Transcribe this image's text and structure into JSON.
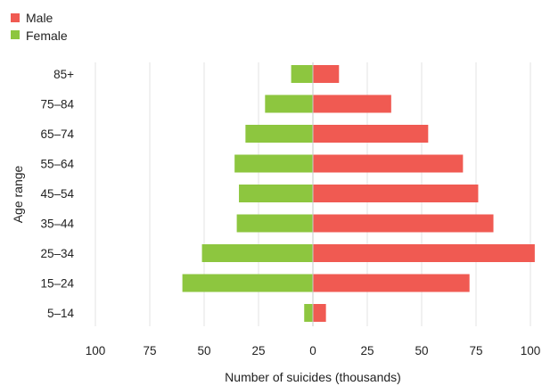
{
  "chart_data": {
    "type": "bar",
    "orientation": "horizontal-diverging",
    "categories": [
      "85+",
      "75–84",
      "65–74",
      "55–64",
      "45–54",
      "35–44",
      "25–34",
      "15–24",
      "5–14"
    ],
    "series": [
      {
        "name": "Male",
        "color": "#f05a52",
        "values": [
          12,
          36,
          53,
          69,
          76,
          83,
          102,
          72,
          6
        ]
      },
      {
        "name": "Female",
        "color": "#8dc63f",
        "values": [
          10,
          22,
          31,
          36,
          34,
          35,
          51,
          60,
          4
        ]
      }
    ],
    "xlabel": "Number of suicides (thousands)",
    "ylabel": "Age range",
    "xticks": [
      "100",
      "75",
      "50",
      "25",
      "0",
      "25",
      "50",
      "75",
      "100"
    ],
    "xlim": [
      -100,
      100
    ],
    "grid": true,
    "legend_position": "top-left"
  }
}
